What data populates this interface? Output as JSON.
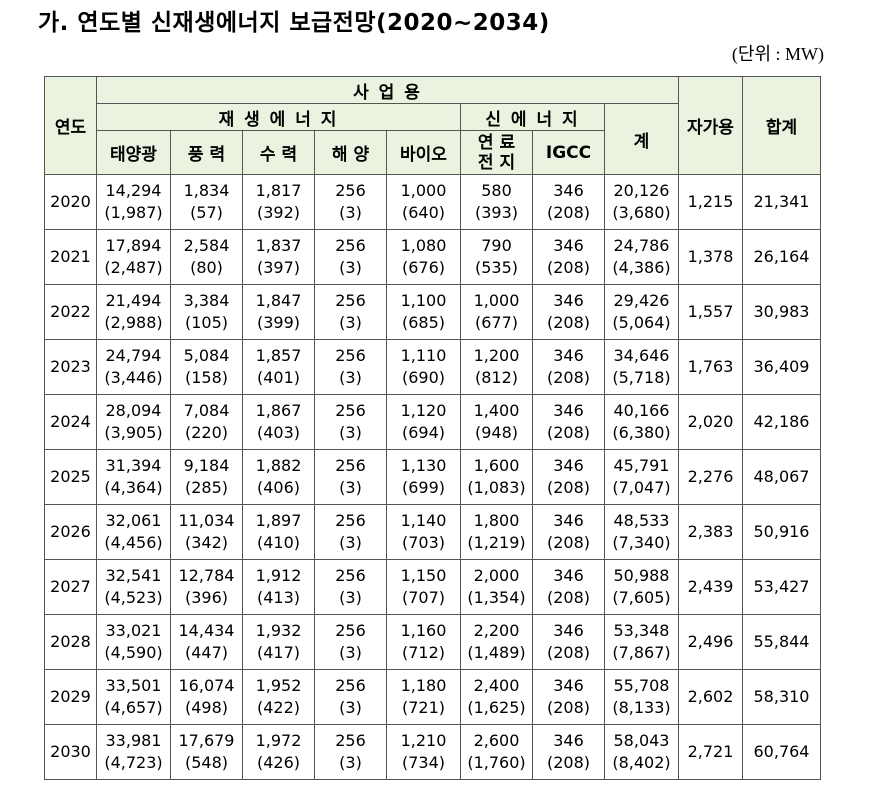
{
  "title": "가. 연도별 신재생에너지 보급전망(2020~2034)",
  "unit": "(단위 : MW)",
  "headers": {
    "year": "연도",
    "business": "사 업 용",
    "renewable": "재 생 에 너 지",
    "new_energy": "신 에 너 지",
    "solar": "태양광",
    "wind": "풍 력",
    "hydro": "수 력",
    "ocean": "해 양",
    "bio": "바이오",
    "fuelcell_1": "연 료",
    "fuelcell_2": "전 지",
    "igcc": "IGCC",
    "subtotal": "계",
    "self": "자가용",
    "total": "합계"
  },
  "rows": [
    {
      "year": "2020",
      "solar": [
        "14,294",
        "(1,987)"
      ],
      "wind": [
        "1,834",
        "(57)"
      ],
      "hydro": [
        "1,817",
        "(392)"
      ],
      "ocean": [
        "256",
        "(3)"
      ],
      "bio": [
        "1,000",
        "(640)"
      ],
      "fuel": [
        "580",
        "(393)"
      ],
      "igcc": [
        "346",
        "(208)"
      ],
      "sub": [
        "20,126",
        "(3,680)"
      ],
      "self": "1,215",
      "total": "21,341"
    },
    {
      "year": "2021",
      "solar": [
        "17,894",
        "(2,487)"
      ],
      "wind": [
        "2,584",
        "(80)"
      ],
      "hydro": [
        "1,837",
        "(397)"
      ],
      "ocean": [
        "256",
        "(3)"
      ],
      "bio": [
        "1,080",
        "(676)"
      ],
      "fuel": [
        "790",
        "(535)"
      ],
      "igcc": [
        "346",
        "(208)"
      ],
      "sub": [
        "24,786",
        "(4,386)"
      ],
      "self": "1,378",
      "total": "26,164"
    },
    {
      "year": "2022",
      "solar": [
        "21,494",
        "(2,988)"
      ],
      "wind": [
        "3,384",
        "(105)"
      ],
      "hydro": [
        "1,847",
        "(399)"
      ],
      "ocean": [
        "256",
        "(3)"
      ],
      "bio": [
        "1,100",
        "(685)"
      ],
      "fuel": [
        "1,000",
        "(677)"
      ],
      "igcc": [
        "346",
        "(208)"
      ],
      "sub": [
        "29,426",
        "(5,064)"
      ],
      "self": "1,557",
      "total": "30,983"
    },
    {
      "year": "2023",
      "solar": [
        "24,794",
        "(3,446)"
      ],
      "wind": [
        "5,084",
        "(158)"
      ],
      "hydro": [
        "1,857",
        "(401)"
      ],
      "ocean": [
        "256",
        "(3)"
      ],
      "bio": [
        "1,110",
        "(690)"
      ],
      "fuel": [
        "1,200",
        "(812)"
      ],
      "igcc": [
        "346",
        "(208)"
      ],
      "sub": [
        "34,646",
        "(5,718)"
      ],
      "self": "1,763",
      "total": "36,409"
    },
    {
      "year": "2024",
      "solar": [
        "28,094",
        "(3,905)"
      ],
      "wind": [
        "7,084",
        "(220)"
      ],
      "hydro": [
        "1,867",
        "(403)"
      ],
      "ocean": [
        "256",
        "(3)"
      ],
      "bio": [
        "1,120",
        "(694)"
      ],
      "fuel": [
        "1,400",
        "(948)"
      ],
      "igcc": [
        "346",
        "(208)"
      ],
      "sub": [
        "40,166",
        "(6,380)"
      ],
      "self": "2,020",
      "total": "42,186"
    },
    {
      "year": "2025",
      "solar": [
        "31,394",
        "(4,364)"
      ],
      "wind": [
        "9,184",
        "(285)"
      ],
      "hydro": [
        "1,882",
        "(406)"
      ],
      "ocean": [
        "256",
        "(3)"
      ],
      "bio": [
        "1,130",
        "(699)"
      ],
      "fuel": [
        "1,600",
        "(1,083)"
      ],
      "igcc": [
        "346",
        "(208)"
      ],
      "sub": [
        "45,791",
        "(7,047)"
      ],
      "self": "2,276",
      "total": "48,067"
    },
    {
      "year": "2026",
      "solar": [
        "32,061",
        "(4,456)"
      ],
      "wind": [
        "11,034",
        "(342)"
      ],
      "hydro": [
        "1,897",
        "(410)"
      ],
      "ocean": [
        "256",
        "(3)"
      ],
      "bio": [
        "1,140",
        "(703)"
      ],
      "fuel": [
        "1,800",
        "(1,219)"
      ],
      "igcc": [
        "346",
        "(208)"
      ],
      "sub": [
        "48,533",
        "(7,340)"
      ],
      "self": "2,383",
      "total": "50,916"
    },
    {
      "year": "2027",
      "solar": [
        "32,541",
        "(4,523)"
      ],
      "wind": [
        "12,784",
        "(396)"
      ],
      "hydro": [
        "1,912",
        "(413)"
      ],
      "ocean": [
        "256",
        "(3)"
      ],
      "bio": [
        "1,150",
        "(707)"
      ],
      "fuel": [
        "2,000",
        "(1,354)"
      ],
      "igcc": [
        "346",
        "(208)"
      ],
      "sub": [
        "50,988",
        "(7,605)"
      ],
      "self": "2,439",
      "total": "53,427"
    },
    {
      "year": "2028",
      "solar": [
        "33,021",
        "(4,590)"
      ],
      "wind": [
        "14,434",
        "(447)"
      ],
      "hydro": [
        "1,932",
        "(417)"
      ],
      "ocean": [
        "256",
        "(3)"
      ],
      "bio": [
        "1,160",
        "(712)"
      ],
      "fuel": [
        "2,200",
        "(1,489)"
      ],
      "igcc": [
        "346",
        "(208)"
      ],
      "sub": [
        "53,348",
        "(7,867)"
      ],
      "self": "2,496",
      "total": "55,844"
    },
    {
      "year": "2029",
      "solar": [
        "33,501",
        "(4,657)"
      ],
      "wind": [
        "16,074",
        "(498)"
      ],
      "hydro": [
        "1,952",
        "(422)"
      ],
      "ocean": [
        "256",
        "(3)"
      ],
      "bio": [
        "1,180",
        "(721)"
      ],
      "fuel": [
        "2,400",
        "(1,625)"
      ],
      "igcc": [
        "346",
        "(208)"
      ],
      "sub": [
        "55,708",
        "(8,133)"
      ],
      "self": "2,602",
      "total": "58,310"
    },
    {
      "year": "2030",
      "solar": [
        "33,981",
        "(4,723)"
      ],
      "wind": [
        "17,679",
        "(548)"
      ],
      "hydro": [
        "1,972",
        "(426)"
      ],
      "ocean": [
        "256",
        "(3)"
      ],
      "bio": [
        "1,210",
        "(734)"
      ],
      "fuel": [
        "2,600",
        "(1,760)"
      ],
      "igcc": [
        "346",
        "(208)"
      ],
      "sub": [
        "58,043",
        "(8,402)"
      ],
      "self": "2,721",
      "total": "60,764"
    }
  ]
}
